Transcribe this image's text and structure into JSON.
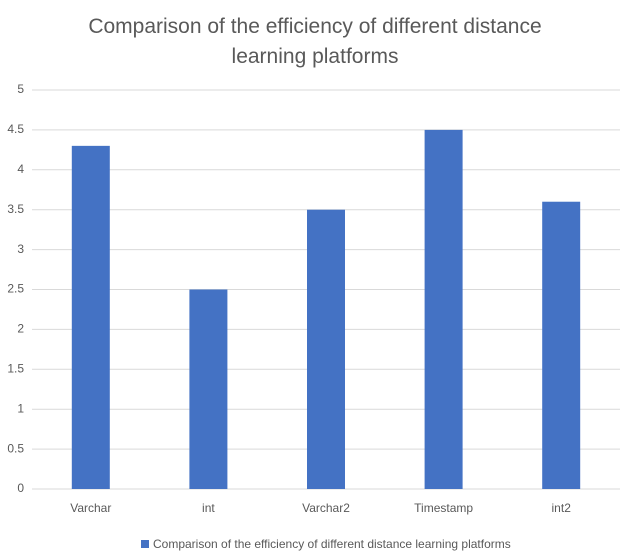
{
  "chart_data": {
    "type": "bar",
    "title": "Comparison of the efficiency of different distance learning platforms",
    "categories": [
      "Varchar",
      "int",
      "Varchar2",
      "Timestamp",
      "int2"
    ],
    "series": [
      {
        "name": "Comparison of the efficiency of different distance learning platforms",
        "color": "#4472c4",
        "values": [
          4.3,
          2.5,
          3.5,
          4.5,
          3.6
        ]
      }
    ],
    "ylim": [
      0,
      5
    ],
    "yticks": [
      0,
      0.5,
      1,
      1.5,
      2,
      2.5,
      3,
      3.5,
      4,
      4.5,
      5
    ],
    "grid": true,
    "legend": "bottom"
  }
}
